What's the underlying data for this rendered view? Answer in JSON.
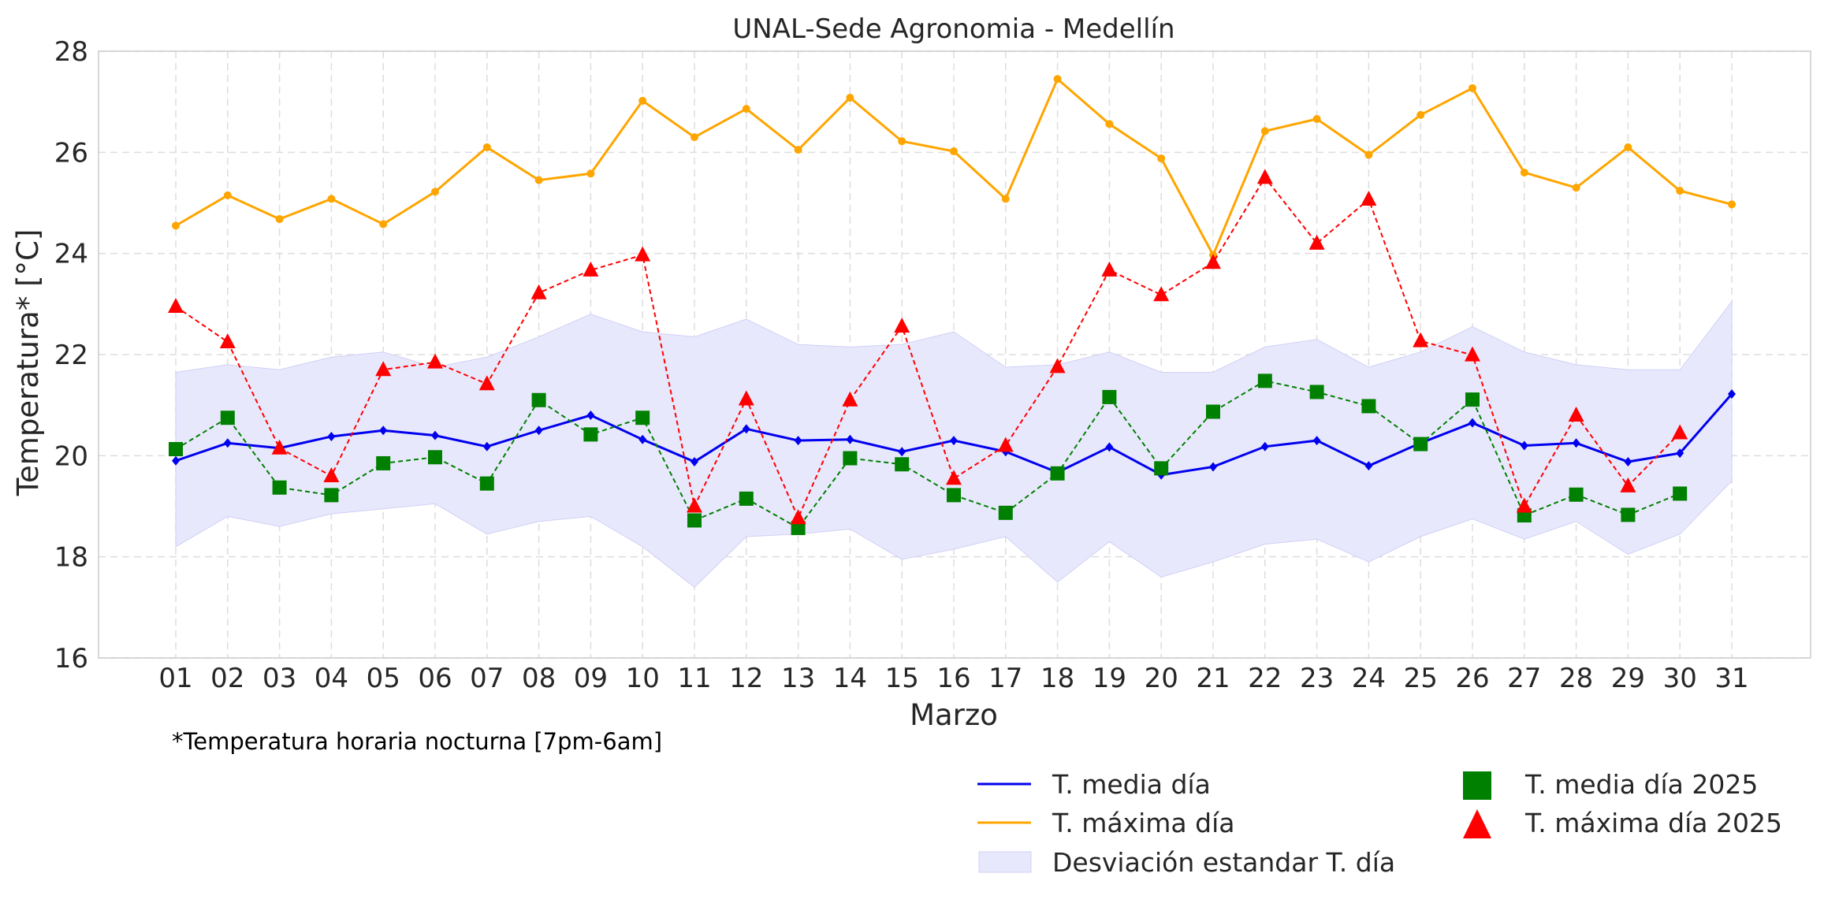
{
  "chart_data": {
    "type": "line",
    "title": "UNAL-Sede Agronomia - Medellín",
    "xlabel": "Marzo",
    "ylabel": "Temperatura* [°C]",
    "note": "*Temperatura horaria nocturna [7pm-6am]",
    "ylim": [
      16,
      28
    ],
    "yticks": [
      "16",
      "18",
      "20",
      "22",
      "24",
      "26",
      "28"
    ],
    "grid": true,
    "legend_position": "bottom-right",
    "categories": [
      "01",
      "02",
      "03",
      "04",
      "05",
      "06",
      "07",
      "08",
      "09",
      "10",
      "11",
      "12",
      "13",
      "14",
      "15",
      "16",
      "17",
      "18",
      "19",
      "20",
      "21",
      "22",
      "23",
      "24",
      "25",
      "26",
      "27",
      "28",
      "29",
      "30",
      "31"
    ],
    "band": {
      "name": "Desviación estandar T. día",
      "color": "#e8e8fd",
      "upper": [
        21.65,
        21.8,
        21.7,
        21.95,
        22.05,
        21.75,
        21.95,
        22.35,
        22.8,
        22.45,
        22.35,
        22.7,
        22.2,
        22.15,
        22.2,
        22.45,
        21.75,
        21.8,
        22.05,
        21.65,
        21.65,
        22.15,
        22.3,
        21.75,
        22.05,
        22.55,
        22.05,
        21.8,
        21.7,
        21.7,
        23.05
      ],
      "lower": [
        18.2,
        18.8,
        18.6,
        18.85,
        18.95,
        19.05,
        18.45,
        18.7,
        18.8,
        18.2,
        17.4,
        18.4,
        18.45,
        18.55,
        17.95,
        18.15,
        18.4,
        17.5,
        18.3,
        17.6,
        17.9,
        18.25,
        18.35,
        17.9,
        18.4,
        18.75,
        18.35,
        18.7,
        18.05,
        18.45,
        19.5
      ]
    },
    "series": [
      {
        "name": "T. media día",
        "color": "#0000ee",
        "style": "solid-line",
        "values": [
          19.9,
          20.25,
          20.15,
          20.38,
          20.5,
          20.4,
          20.18,
          20.5,
          20.8,
          20.32,
          19.88,
          20.53,
          20.3,
          20.32,
          20.08,
          20.3,
          20.08,
          19.67,
          20.17,
          19.62,
          19.78,
          20.18,
          20.3,
          19.8,
          20.25,
          20.65,
          20.2,
          20.25,
          19.88,
          20.05,
          21.22
        ]
      },
      {
        "name": "T. máxima día",
        "color": "#ffa500",
        "style": "solid-line",
        "values": [
          24.55,
          25.15,
          24.68,
          25.08,
          24.58,
          25.22,
          26.1,
          25.45,
          25.58,
          27.02,
          26.3,
          26.86,
          26.05,
          27.08,
          26.22,
          26.02,
          25.08,
          27.45,
          26.56,
          25.88,
          23.97,
          26.42,
          26.66,
          25.95,
          26.74,
          27.27,
          25.6,
          25.3,
          26.1,
          25.24,
          24.97
        ]
      },
      {
        "name": "T. media día 2025",
        "color": "#008000",
        "style": "dashed-square",
        "values": [
          20.13,
          20.75,
          19.37,
          19.22,
          19.85,
          19.97,
          19.45,
          21.1,
          20.42,
          20.75,
          18.72,
          19.15,
          18.57,
          19.95,
          19.83,
          19.22,
          18.87,
          19.65,
          21.16,
          19.75,
          20.87,
          21.48,
          21.26,
          20.98,
          20.23,
          21.11,
          18.82,
          19.23,
          18.83,
          19.25,
          null
        ]
      },
      {
        "name": "T. máxima día 2025",
        "color": "#ff0000",
        "style": "dashed-triangle",
        "values": [
          22.95,
          22.25,
          20.15,
          19.6,
          21.7,
          21.85,
          21.42,
          23.22,
          23.67,
          23.97,
          19.0,
          21.12,
          18.77,
          21.1,
          22.56,
          19.55,
          20.2,
          21.76,
          23.67,
          23.18,
          23.82,
          25.5,
          24.2,
          25.07,
          22.27,
          21.99,
          19.0,
          20.8,
          19.4,
          20.45,
          null
        ]
      }
    ]
  }
}
